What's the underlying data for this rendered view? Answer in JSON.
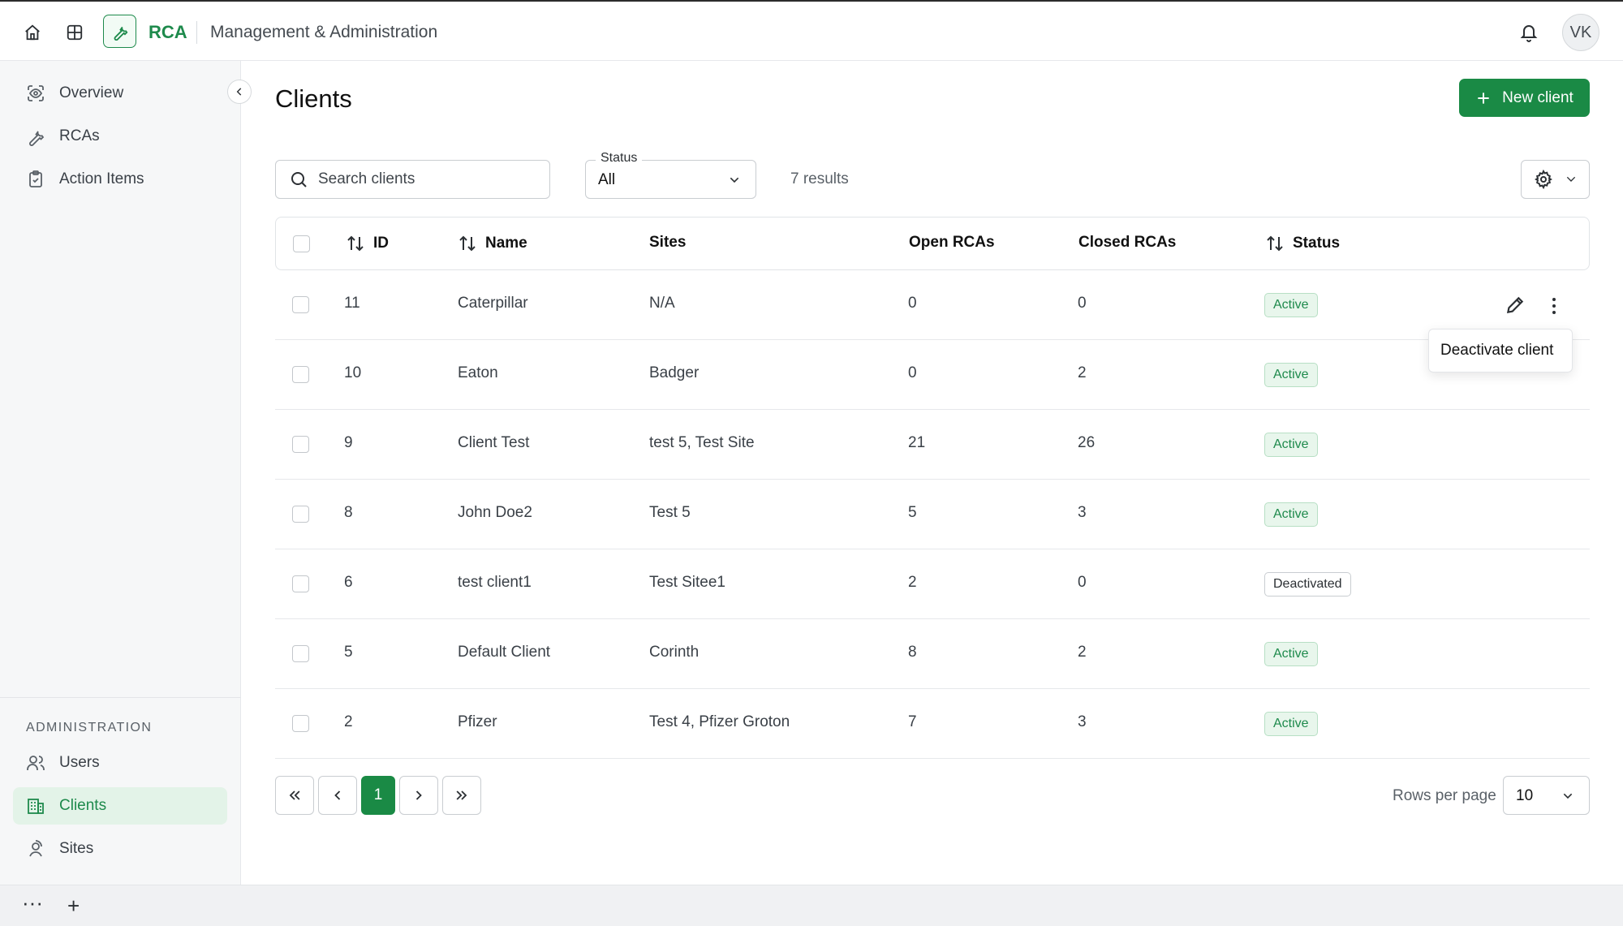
{
  "header": {
    "app_name": "RCA",
    "section_title": "Management & Administration",
    "user_initials": "VK",
    "icons": [
      "home-icon",
      "grid-icon",
      "wrench-icon",
      "bell-icon"
    ]
  },
  "sidebar": {
    "items": [
      {
        "label": "Overview",
        "icon": "eye-scan-icon"
      },
      {
        "label": "RCAs",
        "icon": "wrench-icon"
      },
      {
        "label": "Action Items",
        "icon": "clipboard-check-icon"
      }
    ],
    "admin_section_label": "ADMINISTRATION",
    "admin_items": [
      {
        "label": "Users",
        "icon": "users-icon"
      },
      {
        "label": "Clients",
        "icon": "building-icon",
        "active": true
      },
      {
        "label": "Sites",
        "icon": "location-user-icon"
      }
    ]
  },
  "page": {
    "title": "Clients",
    "new_button_label": "New client",
    "search_placeholder": "Search clients",
    "status_filter": {
      "label": "Status",
      "value": "All"
    },
    "results_text": "7 results"
  },
  "table": {
    "columns": [
      "ID",
      "Name",
      "Sites",
      "Open RCAs",
      "Closed RCAs",
      "Status"
    ],
    "rows": [
      {
        "id": "11",
        "name": "Caterpillar",
        "sites": "N/A",
        "open": "0",
        "closed": "0",
        "status": "Active"
      },
      {
        "id": "10",
        "name": "Eaton",
        "sites": "Badger",
        "open": "0",
        "closed": "2",
        "status": "Active"
      },
      {
        "id": "9",
        "name": "Client Test",
        "sites": "test 5, Test Site",
        "open": "21",
        "closed": "26",
        "status": "Active"
      },
      {
        "id": "8",
        "name": "John Doe2",
        "sites": "Test 5",
        "open": "5",
        "closed": "3",
        "status": "Active"
      },
      {
        "id": "6",
        "name": "test client1",
        "sites": "Test Sitee1",
        "open": "2",
        "closed": "0",
        "status": "Deactivated"
      },
      {
        "id": "5",
        "name": "Default Client",
        "sites": "Corinth",
        "open": "8",
        "closed": "2",
        "status": "Active"
      },
      {
        "id": "2",
        "name": "Pfizer",
        "sites": "Test 4, Pfizer Groton",
        "open": "7",
        "closed": "3",
        "status": "Active"
      }
    ]
  },
  "row_menu": {
    "item": "Deactivate client"
  },
  "pagination": {
    "current_page": "1",
    "rows_per_page_label": "Rows per page",
    "rows_per_page_value": "10"
  },
  "bottombar": {
    "more": "···",
    "add": "+"
  },
  "colors": {
    "accent": "#1a8a45",
    "active_badge_bg": "#e8f6ec"
  }
}
